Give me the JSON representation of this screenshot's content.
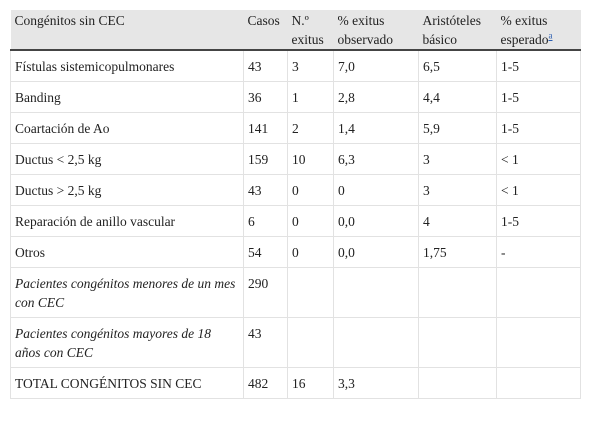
{
  "table": {
    "header": [
      "Congénitos sin CEC",
      "Casos",
      "N.º exitus",
      "% exitus observado",
      "Aristóteles básico",
      "% exitus esperado"
    ],
    "header_footnote": "a",
    "rows": [
      [
        "Fístulas sistemicopulmonares",
        "43",
        "3",
        "7,0",
        "6,5",
        "1-5"
      ],
      [
        "Banding",
        "36",
        "1",
        "2,8",
        "4,4",
        "1-5"
      ],
      [
        "Coartación de Ao",
        "141",
        "2",
        "1,4",
        "5,9",
        "1-5"
      ],
      [
        "Ductus < 2,5 kg",
        "159",
        "10",
        "6,3",
        "3",
        "< 1"
      ],
      [
        "Ductus > 2,5 kg",
        "43",
        "0",
        "0",
        "3",
        "< 1"
      ],
      [
        "Reparación de anillo vascular",
        "6",
        "0",
        "0,0",
        "4",
        "1-5"
      ],
      [
        "Otros",
        "54",
        "0",
        "0,0",
        "1,75",
        "-"
      ],
      [
        "Pacientes congénitos menores de un mes con CEC",
        "290"
      ],
      [
        "Pacientes congénitos mayores de 18 años con CEC",
        "43"
      ],
      [
        "TOTAL CONGÉNITOS SIN CEC",
        "482",
        "16",
        "3,3"
      ]
    ],
    "italic_rows": [
      7,
      8
    ]
  }
}
